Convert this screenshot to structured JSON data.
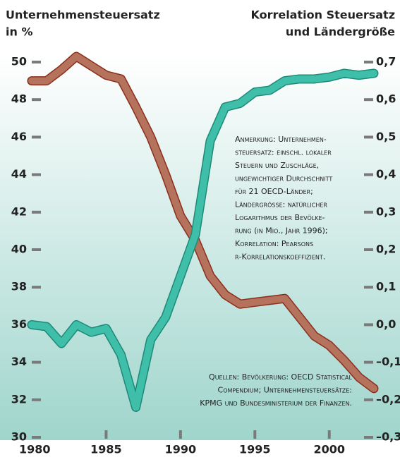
{
  "chart_data": {
    "type": "line",
    "title_left": [
      "Unternehmensteuersatz",
      "in %"
    ],
    "title_right": [
      "Korrelation Steuersatz",
      "und Ländergröße"
    ],
    "x": [
      1980,
      1981,
      1982,
      1983,
      1984,
      1985,
      1986,
      1987,
      1988,
      1989,
      1990,
      1991,
      1992,
      1993,
      1994,
      1995,
      1996,
      1997,
      1998,
      1999,
      2000,
      2001,
      2002,
      2003
    ],
    "xlim": [
      1980,
      2003
    ],
    "xticks": [
      1980,
      1985,
      1990,
      1995,
      2000
    ],
    "ylim": [
      30,
      50
    ],
    "yticks": [
      50,
      48,
      46,
      44,
      42,
      40,
      38,
      36,
      34,
      32,
      30
    ],
    "y2lim": [
      -0.3,
      0.7
    ],
    "y2ticks": [
      {
        "value": 0.7,
        "label": "0,7"
      },
      {
        "value": 0.6,
        "label": "0,6"
      },
      {
        "value": 0.5,
        "label": "0,5"
      },
      {
        "value": 0.4,
        "label": "0,4"
      },
      {
        "value": 0.3,
        "label": "0,3"
      },
      {
        "value": 0.2,
        "label": "0,2"
      },
      {
        "value": 0.1,
        "label": "0,1"
      },
      {
        "value": 0.0,
        "label": "0,0"
      },
      {
        "value": -0.1,
        "label": "–0,1"
      },
      {
        "value": -0.2,
        "label": "–0,2"
      },
      {
        "value": -0.3,
        "label": "–0,3"
      }
    ],
    "series": [
      {
        "color": "#b5725c",
        "outline": "#8c2e1c",
        "axis": "y",
        "values": [
          49.0,
          49.0,
          49.6,
          50.3,
          49.8,
          49.3,
          49.1,
          47.6,
          46.0,
          44.0,
          41.8,
          40.5,
          38.6,
          37.6,
          37.1,
          37.2,
          37.3,
          37.4,
          36.4,
          35.4,
          34.9,
          34.1,
          33.2,
          32.6
        ]
      },
      {
        "color": "#3fbfa9",
        "outline": "#1d8a77",
        "axis": "y2",
        "values": [
          0.0,
          -0.005,
          -0.05,
          0.0,
          -0.02,
          -0.01,
          -0.08,
          -0.22,
          -0.04,
          0.02,
          0.13,
          0.24,
          0.49,
          0.58,
          0.59,
          0.62,
          0.625,
          0.65,
          0.655,
          0.655,
          0.66,
          0.67,
          0.665,
          0.67
        ]
      }
    ],
    "annotations": [
      {
        "lines": [
          "Anmerkung: Unternehmen-",
          "steuersatz: einschl. lokaler",
          "Steuern und Zuschläge,",
          "ungewichtiger Durchschnitt",
          "für 21 OECD-Länder;",
          "Ländergrösse: natürlicher",
          "Logarithmus der Bevölke-",
          "rung (in Mio., Jahr 1996);",
          "Korrelation: Pearsons",
          "r-Korrelationskoeffizient."
        ]
      },
      {
        "lines": [
          "Quellen: Bevölkerung: OECD Statistical",
          "Compendium; Unternehmensteuersätze:",
          "KPMG und Bundesministerium der Finanzen."
        ]
      }
    ]
  }
}
